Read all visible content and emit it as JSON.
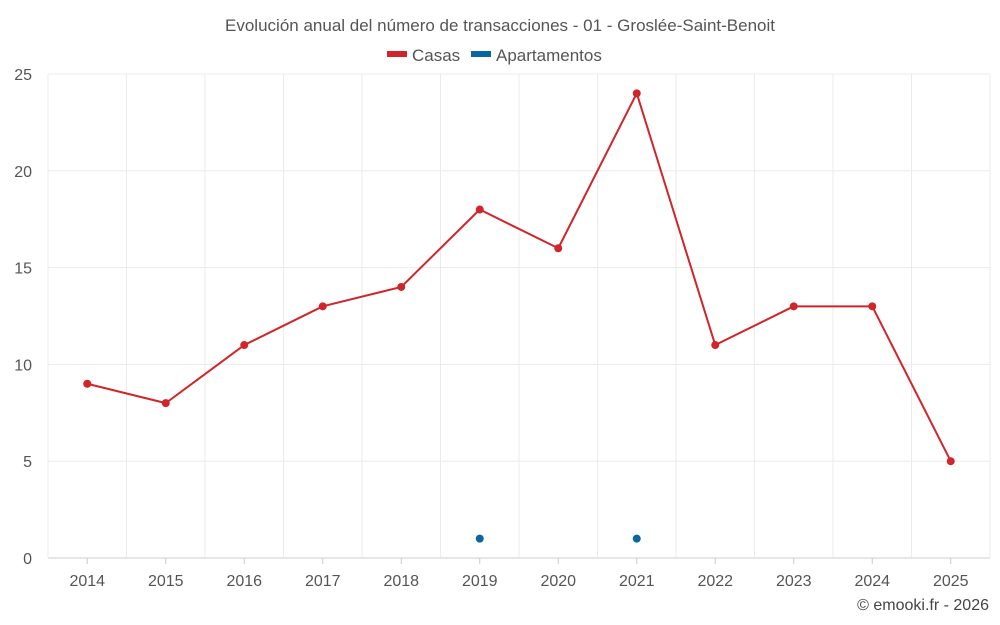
{
  "chart_data": {
    "type": "line",
    "title": "Evolución anual del número de transacciones - 01 - Groslée-Saint-Benoit",
    "categories": [
      "2014",
      "2015",
      "2016",
      "2017",
      "2018",
      "2019",
      "2020",
      "2021",
      "2022",
      "2023",
      "2024",
      "2025"
    ],
    "series": [
      {
        "name": "Casas",
        "color": "#d0252a",
        "values": [
          9,
          8,
          11,
          13,
          14,
          18,
          16,
          24,
          11,
          13,
          13,
          5
        ]
      },
      {
        "name": "Apartamentos",
        "color": "#0a66a0",
        "values": [
          null,
          null,
          null,
          null,
          null,
          1,
          null,
          1,
          null,
          null,
          null,
          null
        ]
      }
    ],
    "ylim": [
      0,
      25
    ],
    "yticks": [
      0,
      5,
      10,
      15,
      20,
      25
    ],
    "grid": true,
    "legend_position": "top-center",
    "xlabel": "",
    "ylabel": ""
  },
  "credit": "© emooki.fr - 2026"
}
